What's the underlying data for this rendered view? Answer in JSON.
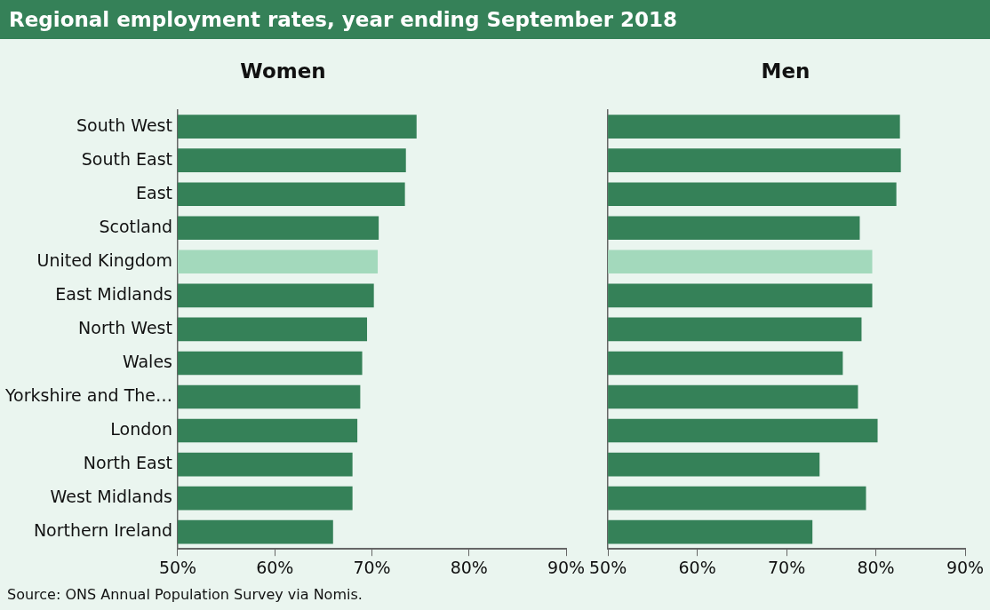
{
  "chart_data": [
    {
      "type": "bar",
      "orientation": "horizontal",
      "title": "Regional employment rates, year ending September 2018",
      "subtitle": "Women",
      "categories": [
        "South West",
        "South East",
        "East",
        "Scotland",
        "United Kingdom",
        "East Midlands",
        "North West",
        "Wales",
        "Yorkshire and The…",
        "London",
        "North East",
        "West Midlands",
        "Northern Ireland"
      ],
      "values": [
        74.6,
        73.5,
        73.4,
        70.7,
        70.6,
        70.2,
        69.5,
        69.0,
        68.8,
        68.5,
        68.0,
        68.0,
        66.0
      ],
      "colors": [
        "#358158",
        "#358158",
        "#358158",
        "#358158",
        "#a3d9bc",
        "#358158",
        "#358158",
        "#358158",
        "#358158",
        "#358158",
        "#358158",
        "#358158",
        "#358158"
      ],
      "xlim": [
        50,
        90
      ],
      "xticks": [
        {
          "value": 50,
          "label": "50%"
        },
        {
          "value": 60,
          "label": "60%"
        },
        {
          "value": 70,
          "label": "70%"
        },
        {
          "value": 80,
          "label": "80%"
        },
        {
          "value": 90,
          "label": "90%"
        }
      ],
      "grid": false,
      "legend": false,
      "annotations": [
        "Source: ONS Annual Population Survey via Nomis."
      ]
    },
    {
      "type": "bar",
      "orientation": "horizontal",
      "subtitle": "Men",
      "categories": [
        null,
        null,
        null,
        null,
        null,
        null,
        null,
        null,
        null,
        null,
        null,
        null,
        null
      ],
      "values": [
        82.7,
        82.8,
        82.3,
        78.2,
        79.6,
        79.6,
        78.4,
        76.3,
        78.0,
        80.2,
        73.7,
        78.9,
        72.9
      ],
      "colors": [
        "#358158",
        "#358158",
        "#358158",
        "#358158",
        "#a3d9bc",
        "#358158",
        "#358158",
        "#358158",
        "#358158",
        "#358158",
        "#358158",
        "#358158",
        "#358158"
      ],
      "xlim": [
        50,
        90
      ],
      "xticks": [
        {
          "value": 50,
          "label": "50%"
        },
        {
          "value": 60,
          "label": "60%"
        },
        {
          "value": 70,
          "label": "70%"
        },
        {
          "value": 80,
          "label": "80%"
        },
        {
          "value": 90,
          "label": "90%"
        }
      ],
      "grid": false,
      "legend": false,
      "tick_labels": "x"
    }
  ]
}
